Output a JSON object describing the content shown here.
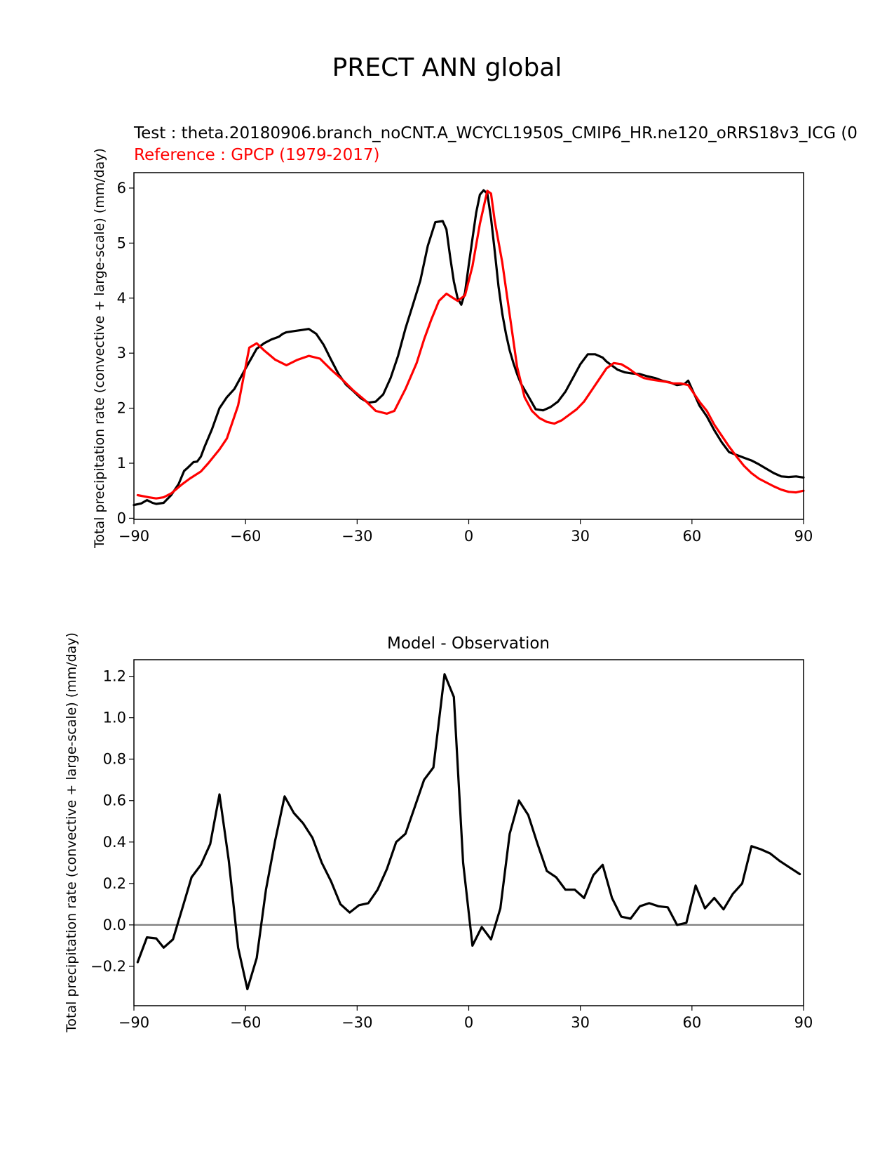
{
  "figure": {
    "title": "PRECT ANN global"
  },
  "chart_data": [
    {
      "type": "line",
      "test_label": "Test : theta.20180906.branch_noCNT.A_WCYCL1950S_CMIP6_HR.ne120_oRRS18v3_ICG (0",
      "reference_label": "Reference : GPCP (1979-2017)",
      "ylabel": "Total precipitation rate (convective + large-scale) (mm/day)",
      "xlim": [
        -90,
        90
      ],
      "ylim": [
        -0.02,
        6.28
      ],
      "xticks": [
        -90,
        -60,
        -30,
        0,
        30,
        60,
        90
      ],
      "xtick_labels": [
        "−90",
        "−60",
        "−30",
        "0",
        "30",
        "60",
        "90"
      ],
      "yticks": [
        0,
        1,
        2,
        3,
        4,
        5,
        6
      ],
      "ytick_labels": [
        "0",
        "1",
        "2",
        "3",
        "4",
        "5",
        "6"
      ],
      "series": [
        {
          "name": "Test",
          "color": "#000000",
          "x": [
            -90,
            -88,
            -86.5,
            -85,
            -84,
            -82,
            -80,
            -78,
            -76.5,
            -75.5,
            -74,
            -73,
            -72,
            -71,
            -69,
            -67,
            -65,
            -63,
            -60,
            -57,
            -55,
            -53,
            -51,
            -50,
            -49,
            -47,
            -45,
            -43,
            -41,
            -39,
            -37,
            -35,
            -33,
            -31,
            -29,
            -27,
            -25,
            -23,
            -21,
            -19,
            -17,
            -15,
            -13,
            -11,
            -9,
            -7,
            -6,
            -5,
            -4,
            -3,
            -2,
            -1,
            0,
            1,
            2,
            3,
            4,
            5,
            6,
            7,
            8,
            9,
            10,
            11,
            12,
            13,
            14,
            16,
            18,
            20,
            22,
            24,
            26,
            28,
            30,
            32,
            34,
            36,
            37,
            38,
            40,
            42,
            44,
            46,
            48,
            50,
            52,
            54,
            56,
            58,
            59,
            60,
            61,
            62,
            64,
            66,
            68,
            70,
            72,
            74,
            76,
            78,
            80,
            82,
            84,
            86,
            88,
            90
          ],
          "y": [
            0.24,
            0.27,
            0.33,
            0.28,
            0.26,
            0.28,
            0.42,
            0.62,
            0.86,
            0.92,
            1.02,
            1.03,
            1.12,
            1.3,
            1.62,
            2.0,
            2.2,
            2.35,
            2.72,
            3.08,
            3.18,
            3.25,
            3.3,
            3.35,
            3.38,
            3.4,
            3.42,
            3.44,
            3.35,
            3.15,
            2.88,
            2.62,
            2.43,
            2.31,
            2.18,
            2.1,
            2.12,
            2.25,
            2.55,
            2.95,
            3.45,
            3.88,
            4.32,
            4.95,
            5.38,
            5.4,
            5.25,
            4.75,
            4.3,
            4.0,
            3.88,
            4.1,
            4.6,
            5.08,
            5.55,
            5.88,
            5.96,
            5.9,
            5.45,
            4.85,
            4.22,
            3.72,
            3.35,
            3.05,
            2.82,
            2.62,
            2.45,
            2.22,
            1.98,
            1.96,
            2.02,
            2.12,
            2.3,
            2.55,
            2.8,
            2.98,
            2.98,
            2.92,
            2.85,
            2.8,
            2.7,
            2.65,
            2.63,
            2.62,
            2.58,
            2.55,
            2.5,
            2.47,
            2.42,
            2.44,
            2.5,
            2.35,
            2.2,
            2.05,
            1.85,
            1.6,
            1.38,
            1.2,
            1.15,
            1.1,
            1.05,
            0.98,
            0.9,
            0.82,
            0.76,
            0.75,
            0.76,
            0.74
          ]
        },
        {
          "name": "Reference",
          "color": "#ff0000",
          "x": [
            -89,
            -86,
            -84,
            -82,
            -80,
            -77,
            -75,
            -72,
            -70,
            -67,
            -65,
            -62,
            -59,
            -57,
            -55,
            -52,
            -49,
            -46,
            -43,
            -40,
            -37,
            -34,
            -31,
            -28,
            -25,
            -22,
            -20,
            -17,
            -14,
            -12,
            -10,
            -8,
            -6,
            -3,
            -1,
            1,
            3,
            5,
            6,
            7,
            9,
            11,
            13,
            15,
            17,
            19,
            21,
            23,
            25,
            27,
            29,
            31,
            33,
            35,
            37,
            39,
            41,
            43,
            45,
            47,
            49,
            51,
            53,
            55,
            57,
            59,
            62,
            64,
            66,
            68,
            70,
            72,
            74,
            76,
            78,
            80,
            82,
            84,
            86,
            88,
            90
          ],
          "y": [
            0.42,
            0.38,
            0.36,
            0.38,
            0.45,
            0.62,
            0.72,
            0.85,
            1.0,
            1.25,
            1.45,
            2.05,
            3.1,
            3.18,
            3.05,
            2.88,
            2.78,
            2.88,
            2.95,
            2.9,
            2.7,
            2.52,
            2.32,
            2.15,
            1.95,
            1.9,
            1.95,
            2.35,
            2.82,
            3.25,
            3.62,
            3.95,
            4.08,
            3.95,
            4.05,
            4.58,
            5.35,
            5.95,
            5.9,
            5.4,
            4.65,
            3.7,
            2.75,
            2.2,
            1.95,
            1.82,
            1.75,
            1.72,
            1.78,
            1.88,
            1.98,
            2.12,
            2.32,
            2.52,
            2.72,
            2.82,
            2.8,
            2.72,
            2.62,
            2.55,
            2.52,
            2.5,
            2.48,
            2.45,
            2.45,
            2.42,
            2.12,
            1.95,
            1.7,
            1.5,
            1.3,
            1.12,
            0.95,
            0.82,
            0.72,
            0.65,
            0.58,
            0.52,
            0.48,
            0.47,
            0.5
          ]
        }
      ]
    },
    {
      "type": "line",
      "title": "Model - Observation",
      "ylabel": "Total precipitation rate (convective + large-scale) (mm/day)",
      "xlim": [
        -90,
        90
      ],
      "ylim": [
        -0.39,
        1.28
      ],
      "xticks": [
        -90,
        -60,
        -30,
        0,
        30,
        60,
        90
      ],
      "xtick_labels": [
        "−90",
        "−60",
        "−30",
        "0",
        "30",
        "60",
        "90"
      ],
      "yticks": [
        -0.2,
        0,
        0.2,
        0.4,
        0.6,
        0.8,
        1.0,
        1.2
      ],
      "ytick_labels": [
        "−0.2",
        "0.0",
        "0.2",
        "0.4",
        "0.6",
        "0.8",
        "1.0",
        "1.2"
      ],
      "zero_line_color": "#808080",
      "series": [
        {
          "name": "Model - Observation",
          "color": "#000000",
          "x": [
            -89,
            -86.5,
            -84,
            -82,
            -79.5,
            -77,
            -74.5,
            -72,
            -69.5,
            -67,
            -64.5,
            -62,
            -59.5,
            -57,
            -54.5,
            -52,
            -49.5,
            -47,
            -44.5,
            -42,
            -39.5,
            -37,
            -34.5,
            -32,
            -29.5,
            -27,
            -24.5,
            -22,
            -19.5,
            -17,
            -14.5,
            -12,
            -9.5,
            -6.5,
            -4,
            -1.5,
            1,
            3.5,
            6,
            8.5,
            11,
            13.5,
            16,
            18.5,
            21,
            23.5,
            26,
            28.5,
            31,
            33.5,
            36,
            38.5,
            41,
            43.5,
            46,
            48.5,
            51,
            53.5,
            56,
            58.5,
            61,
            63.5,
            66,
            68.5,
            71,
            73.5,
            76,
            78.5,
            81,
            83.5,
            86,
            89
          ],
          "y": [
            -0.18,
            -0.06,
            -0.065,
            -0.11,
            -0.07,
            0.08,
            0.23,
            0.29,
            0.39,
            0.63,
            0.31,
            -0.11,
            -0.31,
            -0.16,
            0.17,
            0.41,
            0.62,
            0.54,
            0.49,
            0.42,
            0.3,
            0.21,
            0.1,
            0.06,
            0.095,
            0.105,
            0.17,
            0.27,
            0.4,
            0.44,
            0.57,
            0.7,
            0.76,
            1.21,
            1.1,
            0.3,
            -0.1,
            -0.01,
            -0.07,
            0.08,
            0.44,
            0.6,
            0.53,
            0.39,
            0.26,
            0.23,
            0.17,
            0.17,
            0.13,
            0.24,
            0.29,
            0.13,
            0.04,
            0.03,
            0.09,
            0.105,
            0.09,
            0.085,
            0.0,
            0.01,
            0.19,
            0.08,
            0.13,
            0.075,
            0.15,
            0.2,
            0.38,
            0.365,
            0.345,
            0.31,
            0.28,
            0.245
          ]
        }
      ]
    }
  ]
}
